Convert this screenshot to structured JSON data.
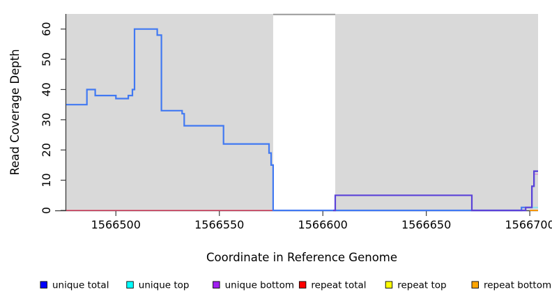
{
  "chart_data": {
    "type": "line",
    "title": "",
    "xlabel": "Coordinate in Reference Genome",
    "ylabel": "Read Coverage Depth",
    "xlim": [
      1566476,
      1566704
    ],
    "ylim": [
      0,
      65
    ],
    "x_ticks": [
      1566500,
      1566550,
      1566600,
      1566650,
      1566700
    ],
    "y_ticks": [
      0,
      10,
      20,
      30,
      40,
      50,
      60
    ],
    "grid": "off",
    "plot_background": "#d9d9d9",
    "gap_region": {
      "x_start": 1566576,
      "x_end": 1566606,
      "fill": "#ffffff",
      "top_border_color": "#9a9a9a"
    },
    "axis_color": "#3a3a3a",
    "series": [
      {
        "name": "repeat-total-baseline",
        "legend_label": "repeat total",
        "color": "#dd4466",
        "width": 1.6,
        "steps": [
          [
            1566476,
            0
          ],
          [
            1566576,
            0
          ]
        ]
      },
      {
        "name": "top-overlap-green-baseline",
        "legend_label": "",
        "color": "#7cc87f",
        "width": 1.6,
        "steps": [
          [
            1566606,
            0
          ],
          [
            1566672,
            0
          ]
        ]
      },
      {
        "name": "repeat-bottom",
        "legend_label": "repeat bottom",
        "color": "#ff9900",
        "width": 1.8,
        "steps": [
          [
            1566700,
            0
          ],
          [
            1566704,
            0
          ]
        ]
      },
      {
        "name": "unique-top",
        "legend_label": "unique top",
        "color": "#7fe3ee",
        "width": 1.8,
        "steps": [
          [
            1566701,
            1
          ],
          [
            1566704,
            1
          ]
        ]
      },
      {
        "name": "overlap-pink",
        "legend_label": "",
        "color": "#d98fd9",
        "width": 1.6,
        "steps": [
          [
            1566701,
            8
          ],
          [
            1566702,
            12
          ],
          [
            1566704,
            12
          ]
        ]
      },
      {
        "name": "unique-total",
        "legend_label": "unique total",
        "color": "#4179f2",
        "width": 2.2,
        "steps": [
          [
            1566476,
            35
          ],
          [
            1566486,
            40
          ],
          [
            1566490,
            38
          ],
          [
            1566500,
            37
          ],
          [
            1566506,
            38
          ],
          [
            1566508,
            40
          ],
          [
            1566509,
            60
          ],
          [
            1566520,
            58
          ],
          [
            1566522,
            33
          ],
          [
            1566532,
            32
          ],
          [
            1566533,
            28
          ],
          [
            1566552,
            22
          ],
          [
            1566574,
            19
          ],
          [
            1566575,
            15
          ],
          [
            1566576,
            0
          ],
          [
            1566696,
            1
          ],
          [
            1566701,
            8
          ],
          [
            1566702,
            13
          ],
          [
            1566704,
            13
          ]
        ]
      },
      {
        "name": "unique-bottom",
        "legend_label": "unique bottom",
        "color": "#5b43d8",
        "width": 2.2,
        "steps": [
          [
            1566605,
            0
          ],
          [
            1566606,
            5
          ],
          [
            1566672,
            0
          ],
          [
            1566698,
            1
          ],
          [
            1566701,
            8
          ],
          [
            1566702,
            13
          ],
          [
            1566704,
            13
          ]
        ]
      }
    ],
    "legend": {
      "position": "bottom",
      "items": [
        {
          "label": "unique total",
          "color": "#0000ff"
        },
        {
          "label": "unique top",
          "color": "#00ffff"
        },
        {
          "label": "unique bottom",
          "color": "#a020f0"
        },
        {
          "label": "repeat total",
          "color": "#ff0000"
        },
        {
          "label": "repeat top",
          "color": "#ffff00"
        },
        {
          "label": "repeat bottom",
          "color": "#ffa500"
        }
      ]
    }
  }
}
